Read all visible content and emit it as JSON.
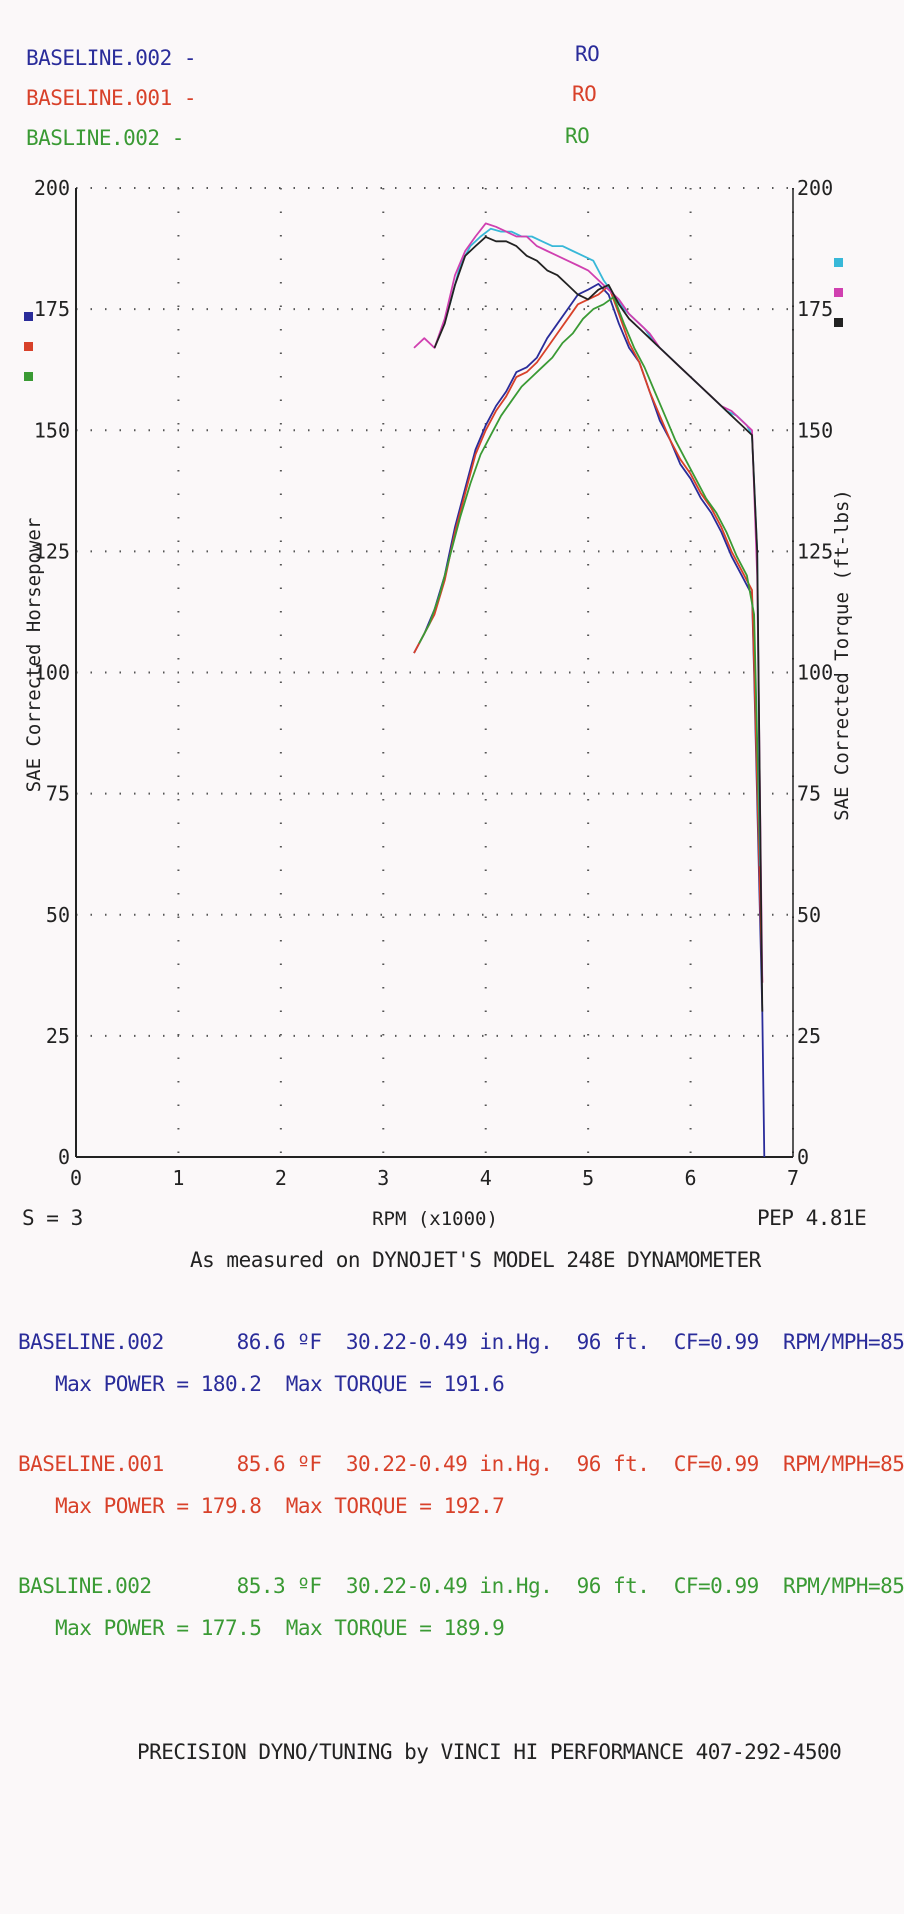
{
  "header_legend": [
    {
      "name": "BASELINE.002 -",
      "tag": "RO",
      "color": "#2a2c9a"
    },
    {
      "name": "BASELINE.001 -",
      "tag": "RO",
      "color": "#d8412a"
    },
    {
      "name": "BASLINE.002 -",
      "tag": "RO",
      "color": "#3a9a34"
    }
  ],
  "footer": {
    "smoothing": "S = 3",
    "version": "PEP 4.81E",
    "measured": "As measured on DYNOJET'S MODEL 248E DYNAMOMETER",
    "credit": "PRECISION DYNO/TUNING by VINCI HI PERFORMANCE 407-292-4500"
  },
  "runs": [
    {
      "line1": "BASELINE.002      86.6 ºF  30.22-0.49 in.Hg.  96 ft.  CF=0.99  RPM/MPH=85",
      "line2": "Max POWER = 180.2  Max TORQUE = 191.6",
      "color": "#2a2c9a"
    },
    {
      "line1": "BASELINE.001      85.6 ºF  30.22-0.49 in.Hg.  96 ft.  CF=0.99  RPM/MPH=85",
      "line2": "Max POWER = 179.8  Max TORQUE = 192.7",
      "color": "#d8412a"
    },
    {
      "line1": "BASLINE.002       85.3 ºF  30.22-0.49 in.Hg.  96 ft.  CF=0.99  RPM/MPH=85",
      "line2": "Max POWER = 177.5  Max TORQUE = 189.9",
      "color": "#3a9a34"
    }
  ],
  "chart_data": {
    "type": "line",
    "xlabel": "RPM (x1000)",
    "ylabel": "SAE Corrected Horsepower",
    "y2label": "SAE Corrected Torque (ft-lbs)",
    "xlim": [
      0,
      7
    ],
    "ylim": [
      0,
      200
    ],
    "y2lim": [
      0,
      200
    ],
    "xticks": [
      "0",
      "1",
      "2",
      "3",
      "4",
      "5",
      "6",
      "7"
    ],
    "yticks": [
      "0",
      "25",
      "50",
      "75",
      "100",
      "125",
      "150",
      "175",
      "200"
    ],
    "grid": true,
    "hp_markers": [
      "#2a2c9a",
      "#d8412a",
      "#3a9a34"
    ],
    "torque_markers": [
      "#38b8d8",
      "#d040b0",
      "#222222"
    ],
    "series": [
      {
        "name": "BASELINE.002",
        "kind": "power",
        "color": "#2a2c9a",
        "x": [
          3.3,
          3.4,
          3.5,
          3.6,
          3.7,
          3.8,
          3.9,
          4.0,
          4.1,
          4.2,
          4.3,
          4.4,
          4.5,
          4.6,
          4.7,
          4.8,
          4.9,
          5.0,
          5.1,
          5.2,
          5.3,
          5.4,
          5.5,
          5.6,
          5.7,
          5.8,
          5.9,
          6.0,
          6.1,
          6.2,
          6.3,
          6.4,
          6.5,
          6.6,
          6.62,
          6.7,
          6.72
        ],
        "y": [
          104,
          108,
          113,
          120,
          130,
          138,
          146,
          151,
          155,
          158,
          162,
          163,
          165,
          169,
          172,
          175,
          178,
          179,
          180.2,
          178,
          172,
          167,
          164,
          158,
          152,
          148,
          143,
          140,
          136,
          133,
          129,
          124,
          120,
          116,
          100,
          30,
          0
        ]
      },
      {
        "name": "BASELINE.001",
        "kind": "power",
        "color": "#d8412a",
        "x": [
          3.3,
          3.4,
          3.5,
          3.6,
          3.7,
          3.8,
          3.9,
          4.0,
          4.1,
          4.2,
          4.3,
          4.4,
          4.5,
          4.6,
          4.7,
          4.8,
          4.9,
          5.0,
          5.1,
          5.2,
          5.3,
          5.4,
          5.5,
          5.6,
          5.7,
          5.8,
          5.9,
          6.0,
          6.1,
          6.2,
          6.3,
          6.4,
          6.5,
          6.6,
          6.62,
          6.7
        ],
        "y": [
          104,
          108,
          112,
          119,
          129,
          137,
          145,
          150,
          154,
          157,
          161,
          162,
          164,
          167,
          170,
          173,
          176,
          177,
          178,
          179.8,
          174,
          168,
          164,
          158,
          153,
          148,
          144,
          141,
          137,
          134,
          130,
          125,
          121,
          117,
          102,
          36
        ]
      },
      {
        "name": "BASLINE.002",
        "kind": "power",
        "color": "#3a9a34",
        "x": [
          3.35,
          3.45,
          3.55,
          3.65,
          3.75,
          3.85,
          3.95,
          4.05,
          4.15,
          4.25,
          4.35,
          4.45,
          4.55,
          4.65,
          4.75,
          4.85,
          4.95,
          5.05,
          5.15,
          5.25,
          5.35,
          5.45,
          5.55,
          5.65,
          5.75,
          5.85,
          5.95,
          6.05,
          6.15,
          6.25,
          6.35,
          6.45,
          6.55,
          6.62,
          6.68
        ],
        "y": [
          106,
          110,
          116,
          124,
          132,
          139,
          145,
          149,
          153,
          156,
          159,
          161,
          163,
          165,
          168,
          170,
          173,
          175,
          176,
          177.5,
          172,
          167,
          163,
          158,
          153,
          148,
          144,
          140,
          136,
          133,
          129,
          124,
          120,
          112,
          60
        ]
      },
      {
        "name": "BASELINE.002",
        "kind": "torque",
        "color": "#38b8d8",
        "x": [
          3.65,
          3.75,
          3.85,
          3.95,
          4.05,
          4.15,
          4.25,
          4.35,
          4.45,
          4.55,
          4.65,
          4.75,
          4.85,
          4.95,
          5.05,
          5.15,
          5.25,
          5.35,
          5.45,
          5.55,
          5.65,
          5.75,
          5.85,
          5.95,
          6.05,
          6.15,
          6.25,
          6.35,
          6.45,
          6.55,
          6.6,
          6.65,
          6.68
        ],
        "y": [
          176,
          184,
          188,
          190,
          191.6,
          191,
          191,
          190,
          190,
          189,
          188,
          188,
          187,
          186,
          185,
          181,
          178,
          175,
          173,
          171,
          168,
          166,
          164,
          162,
          160,
          158,
          156,
          154,
          153,
          151,
          149,
          125,
          60
        ]
      },
      {
        "name": "BASELINE.001",
        "kind": "torque",
        "color": "#d040b0",
        "x": [
          3.3,
          3.4,
          3.5,
          3.6,
          3.7,
          3.8,
          3.9,
          4.0,
          4.1,
          4.2,
          4.3,
          4.4,
          4.5,
          4.6,
          4.7,
          4.8,
          4.9,
          5.0,
          5.1,
          5.2,
          5.3,
          5.4,
          5.5,
          5.6,
          5.7,
          5.8,
          5.9,
          6.0,
          6.1,
          6.2,
          6.3,
          6.4,
          6.5,
          6.6,
          6.65,
          6.7
        ],
        "y": [
          167,
          169,
          167,
          173,
          182,
          187,
          190,
          192.7,
          192,
          191,
          190,
          190,
          188,
          187,
          186,
          185,
          184,
          183,
          181,
          179,
          177,
          174,
          172,
          170,
          167,
          165,
          163,
          161,
          159,
          157,
          155,
          154,
          152,
          150,
          120,
          36
        ]
      },
      {
        "name": "BASLINE.002",
        "kind": "torque",
        "color": "#222222",
        "x": [
          3.5,
          3.6,
          3.7,
          3.8,
          3.9,
          4.0,
          4.1,
          4.2,
          4.3,
          4.4,
          4.5,
          4.6,
          4.7,
          4.8,
          4.9,
          5.0,
          5.1,
          5.2,
          5.3,
          5.4,
          5.5,
          5.6,
          5.7,
          5.8,
          5.9,
          6.0,
          6.1,
          6.2,
          6.3,
          6.4,
          6.5,
          6.6,
          6.65,
          6.7
        ],
        "y": [
          167,
          172,
          180,
          186,
          188,
          189.9,
          189,
          189,
          188,
          186,
          185,
          183,
          182,
          180,
          178,
          177,
          179,
          180,
          176,
          173,
          171,
          169,
          167,
          165,
          163,
          161,
          159,
          157,
          155,
          153,
          151,
          149,
          125,
          30
        ]
      }
    ]
  }
}
